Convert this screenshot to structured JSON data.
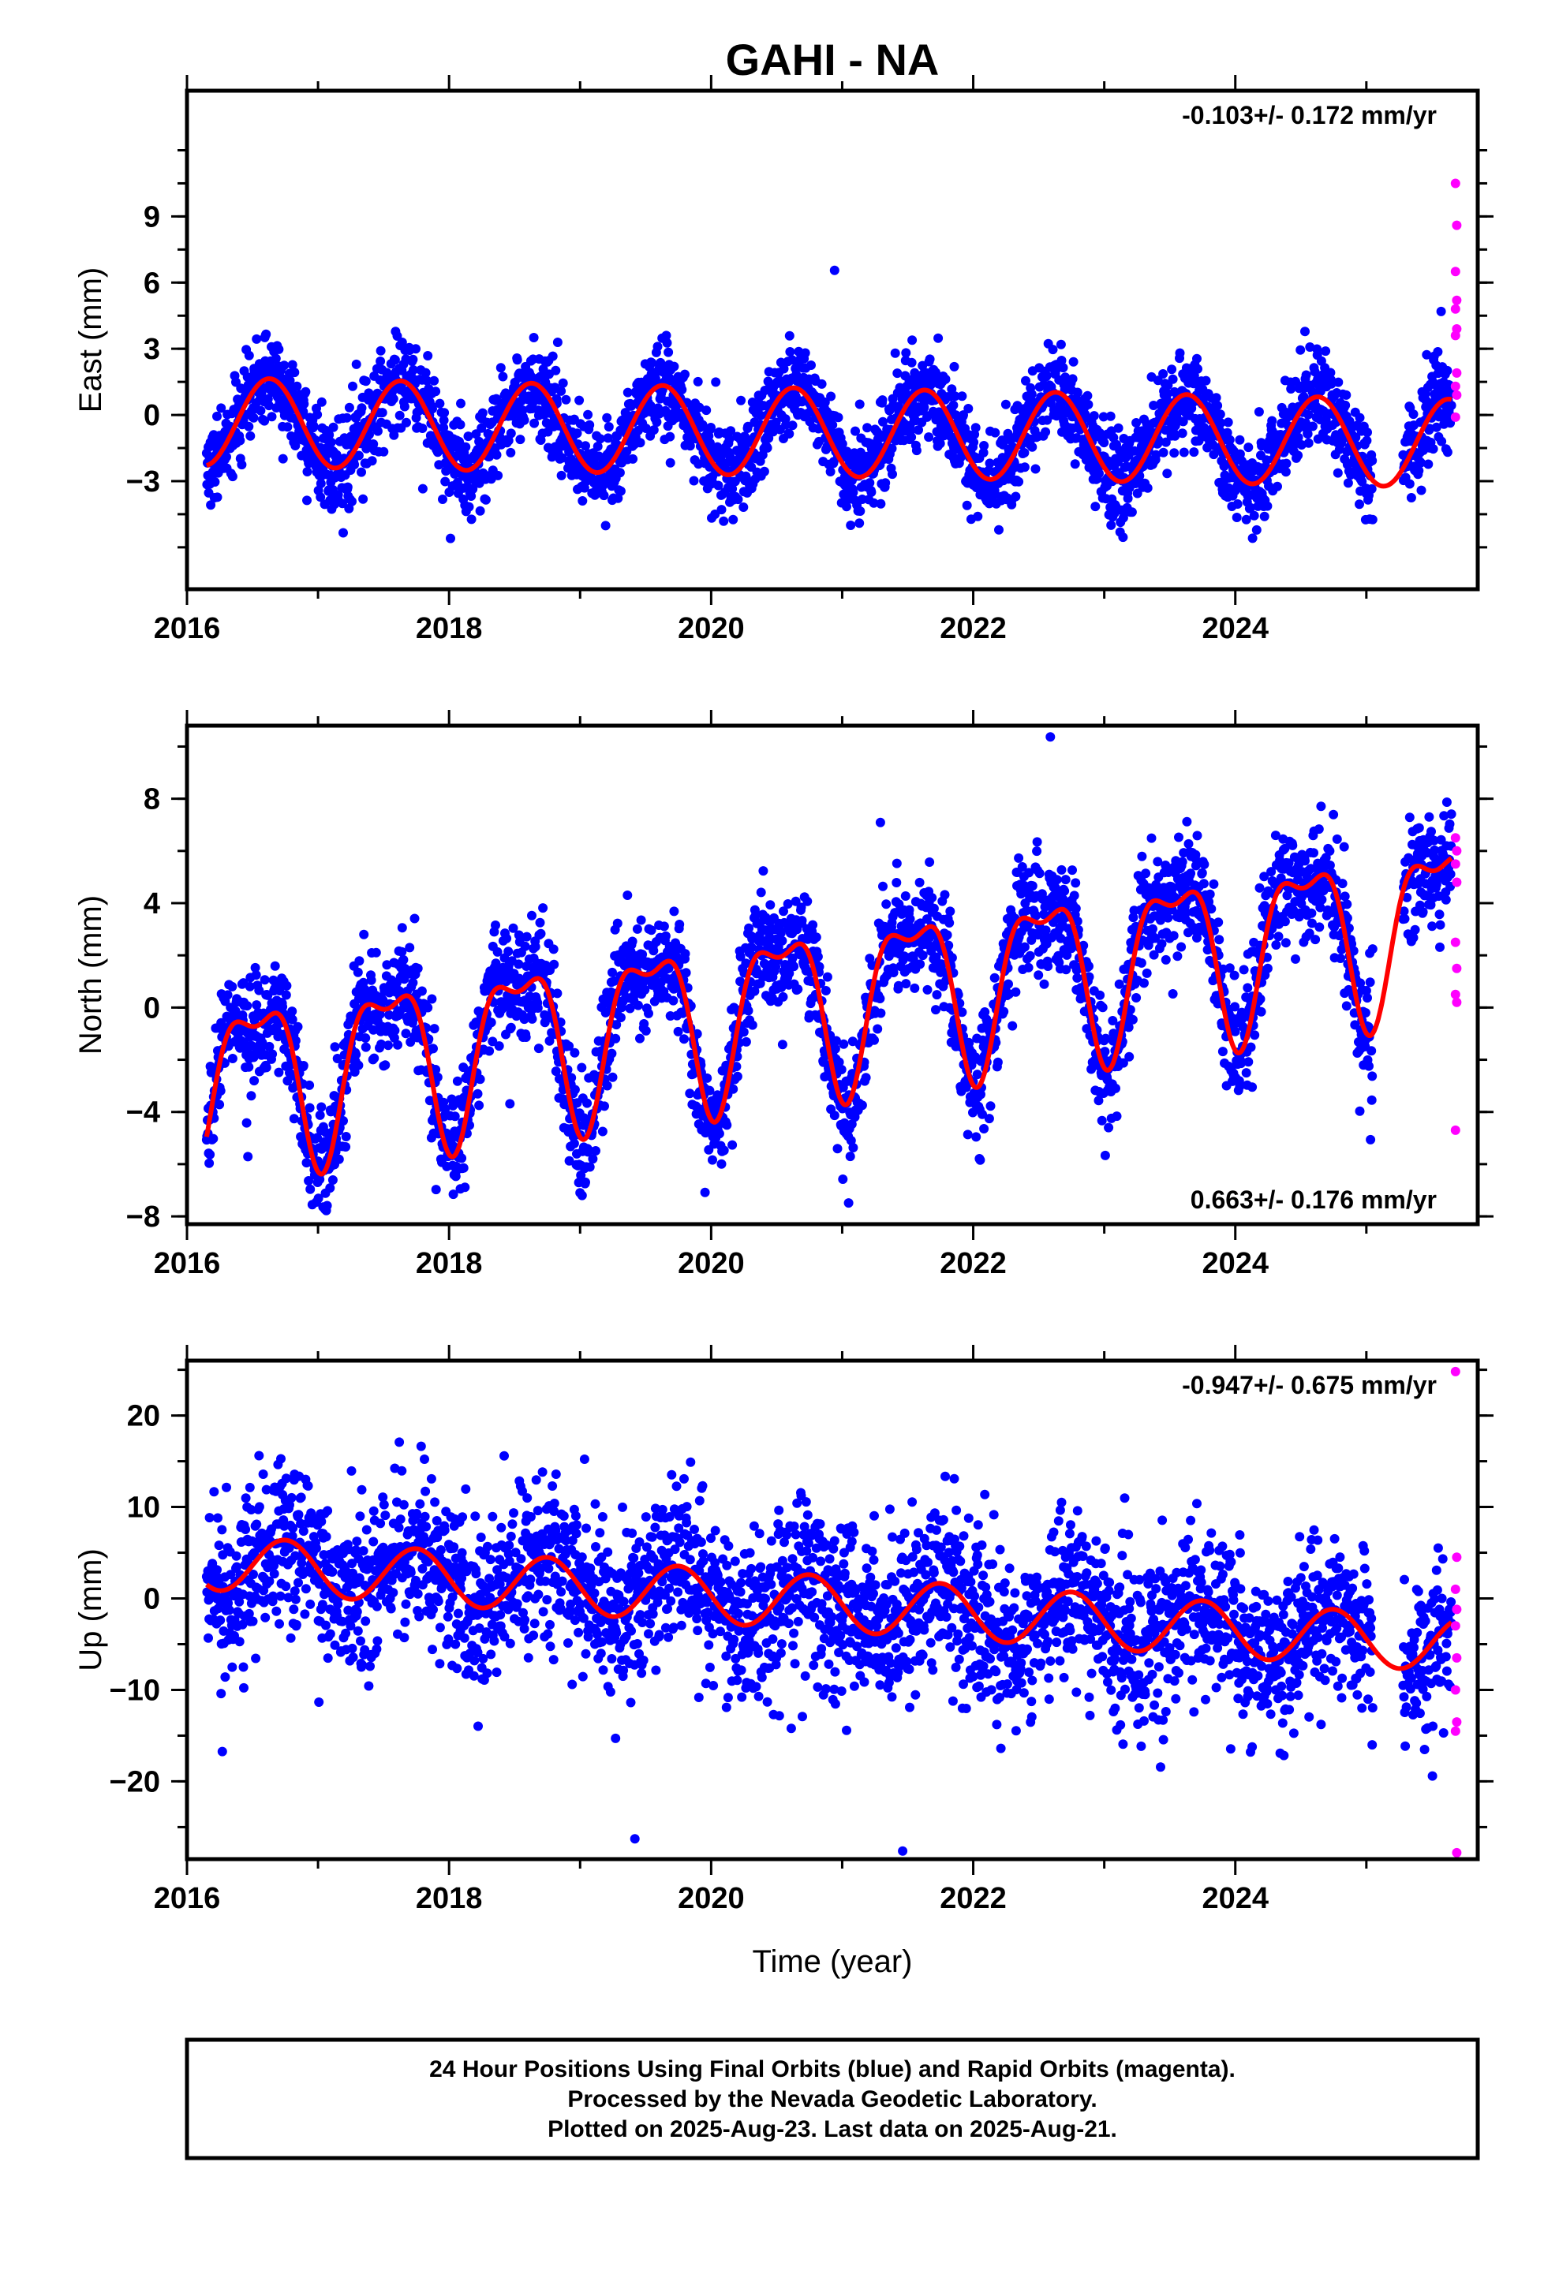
{
  "chart_data": {
    "type": "scatter",
    "title": "GAHI - NA",
    "xlabel": "Time (year)",
    "x_ticks": [
      "2016",
      "2018",
      "2020",
      "2022",
      "2024"
    ],
    "panels": [
      {
        "id": "east",
        "ylabel": "East (mm)",
        "xlim": [
          2016.0,
          2025.85
        ],
        "ylim": [
          -7.9,
          14.7
        ],
        "y_ticks": [
          -3,
          0,
          3,
          6,
          9
        ],
        "rate_text": "-0.103+/- 0.172 mm/yr",
        "rate_position": "top-right",
        "trend_mm_per_yr": -0.103,
        "seasonal_amplitude_mm": 2.0,
        "scatter_sd_mm": 1.0,
        "data_start": 2016.15,
        "data_end": 2025.65,
        "rapid_points": [
          10.5,
          8.6,
          6.5,
          5.2,
          4.8,
          3.9,
          3.6,
          1.9,
          1.3,
          0.9,
          -0.1
        ],
        "series": [
          {
            "name": "Final Orbits",
            "color": "#0000ff",
            "kind": "points"
          },
          {
            "name": "Rapid Orbits",
            "color": "#ff00ff",
            "kind": "points"
          },
          {
            "name": "model",
            "color": "#ff0000",
            "kind": "line"
          }
        ]
      },
      {
        "id": "north",
        "ylabel": "North (mm)",
        "xlim": [
          2016.0,
          2025.85
        ],
        "ylim": [
          -8.3,
          10.8
        ],
        "y_ticks": [
          -8,
          -4,
          0,
          4,
          8
        ],
        "rate_text": "0.663+/- 0.176 mm/yr",
        "rate_position": "bottom-right",
        "trend_mm_per_yr": 0.663,
        "seasonal_amplitude_mm": 3.0,
        "scatter_sd_mm": 1.1,
        "data_start": 2016.15,
        "data_end": 2025.65,
        "rapid_points": [
          6.5,
          6.0,
          5.5,
          4.8,
          2.5,
          1.5,
          0.5,
          0.2,
          -4.7
        ],
        "series": [
          {
            "name": "Final Orbits",
            "color": "#0000ff",
            "kind": "points"
          },
          {
            "name": "Rapid Orbits",
            "color": "#ff00ff",
            "kind": "points"
          },
          {
            "name": "model",
            "color": "#ff0000",
            "kind": "line"
          }
        ]
      },
      {
        "id": "up",
        "ylabel": "Up (mm)",
        "xlim": [
          2016.0,
          2025.85
        ],
        "ylim": [
          -28.5,
          26.0
        ],
        "y_ticks": [
          -20,
          -10,
          0,
          10,
          20
        ],
        "rate_text": "-0.947+/- 0.675 mm/yr",
        "rate_position": "top-right",
        "trend_mm_per_yr": -0.947,
        "seasonal_amplitude_mm": 3.0,
        "scatter_sd_mm": 4.5,
        "data_start": 2016.15,
        "data_end": 2025.65,
        "rapid_points": [
          24.8,
          4.5,
          1.0,
          -1.2,
          -3.0,
          -6.5,
          -10.0,
          -13.5,
          -14.5,
          -27.8
        ],
        "series": [
          {
            "name": "Final Orbits",
            "color": "#0000ff",
            "kind": "points"
          },
          {
            "name": "Rapid Orbits",
            "color": "#ff00ff",
            "kind": "points"
          },
          {
            "name": "model",
            "color": "#ff0000",
            "kind": "line"
          }
        ]
      }
    ]
  },
  "footer": {
    "lines": [
      "24 Hour Positions Using Final Orbits (blue) and Rapid Orbits (magenta).",
      "Processed by the Nevada Geodetic Laboratory.",
      "Plotted on 2025-Aug-23. Last data on 2025-Aug-21."
    ]
  }
}
